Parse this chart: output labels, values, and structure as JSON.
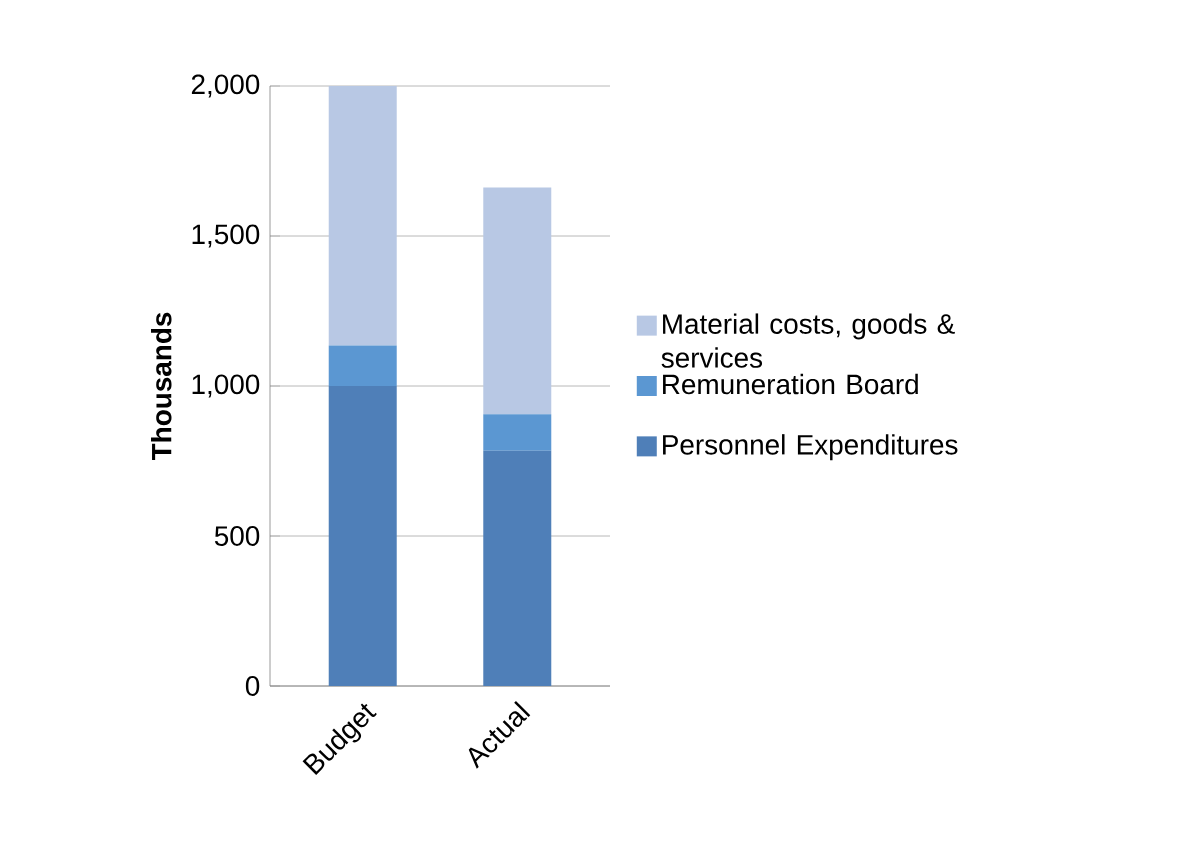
{
  "chart_data": {
    "type": "bar",
    "stacked": true,
    "ylabel": "Thousands",
    "categories": [
      "Budget",
      "Actual"
    ],
    "series": [
      {
        "name": "Personnel Expenditures",
        "color": "#4f7fb8",
        "values": [
          1000,
          784
        ]
      },
      {
        "name": "Remuneration Board",
        "color": "#5b97d2",
        "values": [
          135,
          122
        ]
      },
      {
        "name": "Material costs, goods & services",
        "color": "#b8c8e4",
        "values": [
          865,
          756
        ]
      }
    ],
    "ylim": [
      0,
      2000
    ],
    "yticks": [
      {
        "value": 0,
        "label": "0"
      },
      {
        "value": 500,
        "label": "500"
      },
      {
        "value": 1000,
        "label": "1,000"
      },
      {
        "value": 1500,
        "label": "1,500"
      },
      {
        "value": 2000,
        "label": "2,000"
      }
    ],
    "grid": "y",
    "legend": "right"
  }
}
